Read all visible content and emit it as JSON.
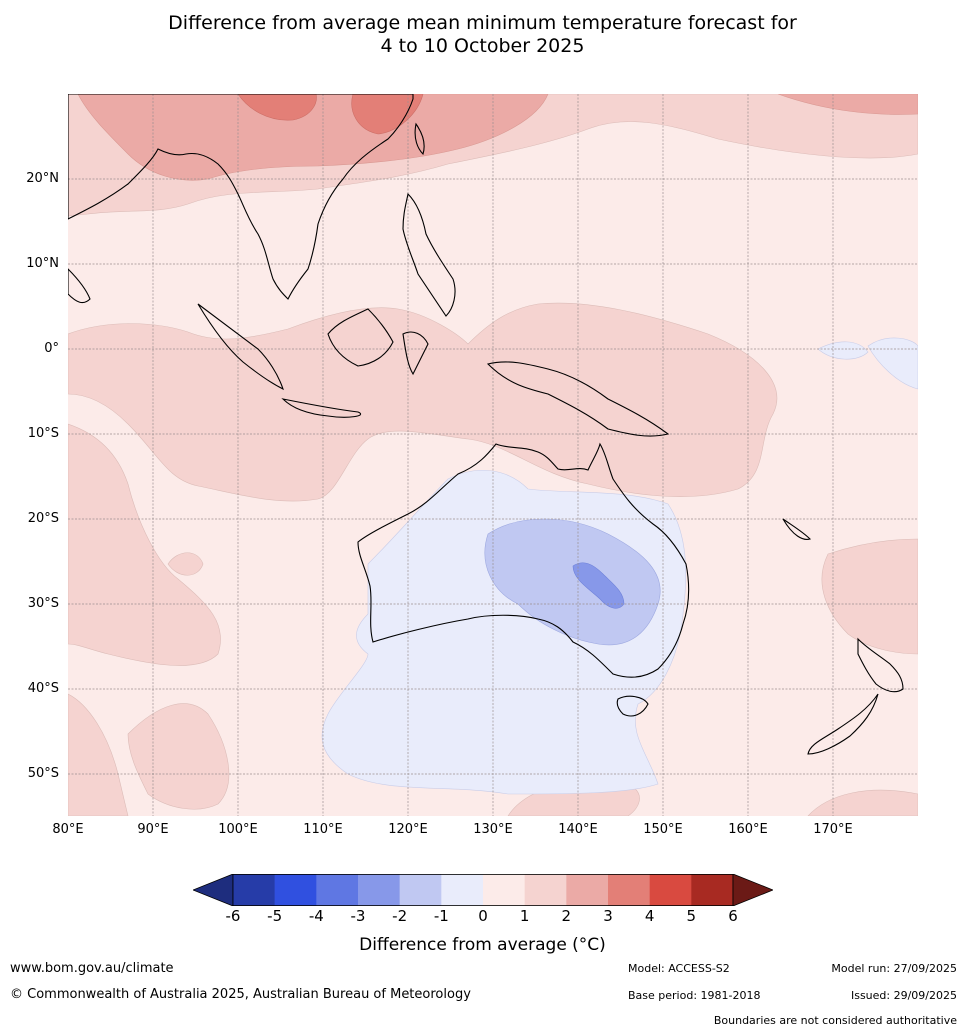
{
  "title_line1": "Difference from average mean minimum temperature forecast for",
  "title_line2": "4 to 10 October 2025",
  "map": {
    "lat_labels": [
      "20°N",
      "10°N",
      "0°",
      "10°S",
      "20°S",
      "30°S",
      "40°S",
      "50°S"
    ],
    "lon_labels": [
      "80°E",
      "90°E",
      "100°E",
      "110°E",
      "120°E",
      "130°E",
      "140°E",
      "150°E",
      "160°E",
      "170°E"
    ],
    "background_color": "#fcebe9"
  },
  "colorbar": {
    "ticks": [
      "-6",
      "-5",
      "-4",
      "-3",
      "-2",
      "-1",
      "0",
      "1",
      "2",
      "3",
      "4",
      "5",
      "6"
    ],
    "colors": [
      "#1e2d7e",
      "#263ca8",
      "#3050e0",
      "#5f77e3",
      "#8798e9",
      "#c0c8f2",
      "#e9ecfb",
      "#fcebe9",
      "#f5d3d0",
      "#ebaaa6",
      "#e37f77",
      "#d94a40",
      "#a82a22",
      "#6b1a16"
    ],
    "label": "Difference from average (°C)"
  },
  "footer": {
    "website": "www.bom.gov.au/climate",
    "copyright": "© Commonwealth of Australia 2025, Australian Bureau of Meteorology",
    "model": "Model: ACCESS-S2",
    "base_period": "Base period: 1981-2018",
    "model_run": "Model run: 27/09/2025",
    "issued": "Issued: 29/09/2025",
    "disclaimer": "Boundaries are not considered authoritative"
  }
}
